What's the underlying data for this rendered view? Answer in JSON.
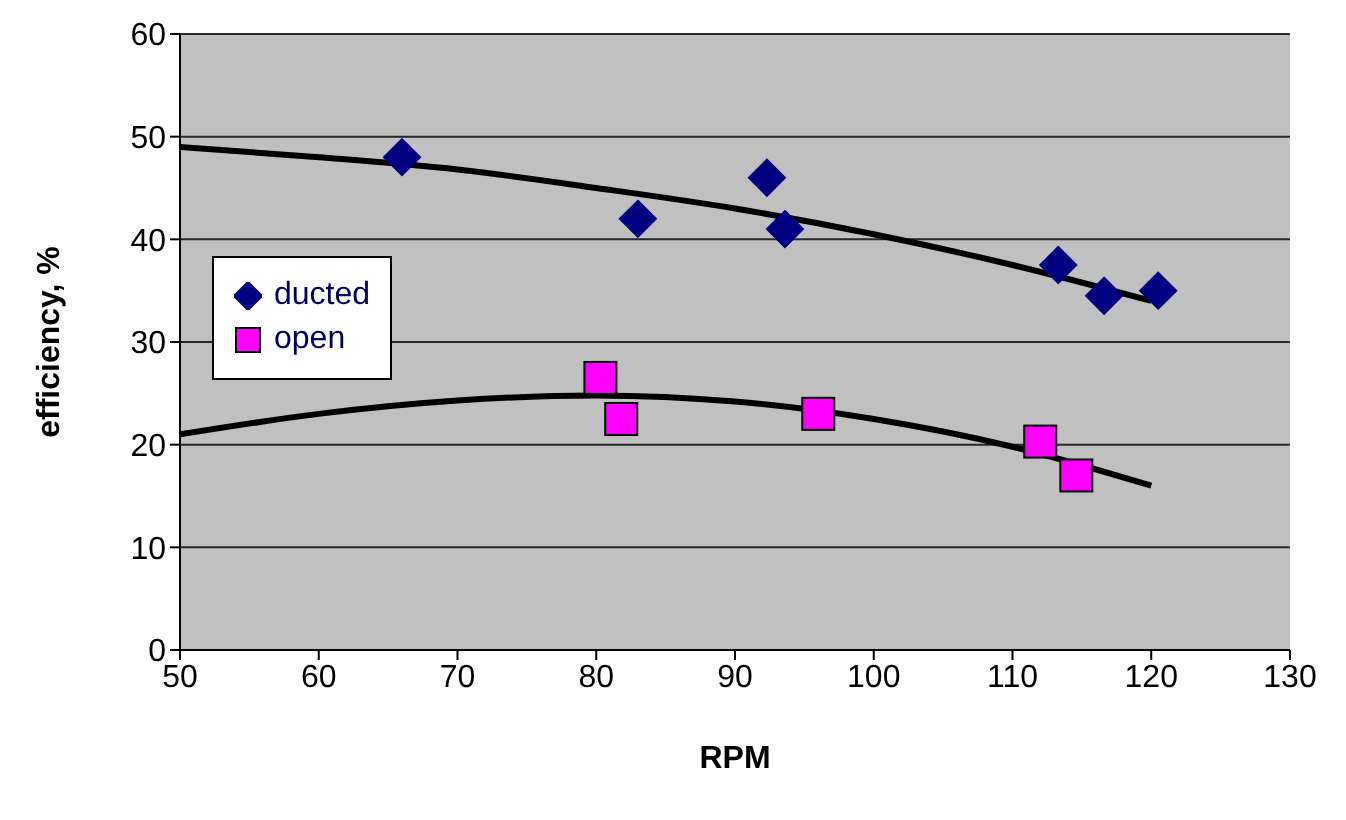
{
  "chart_data": {
    "type": "scatter",
    "xlabel": "RPM",
    "ylabel": "efficiency, %",
    "xlim": [
      50,
      130
    ],
    "xticks": [
      50,
      60,
      70,
      80,
      90,
      100,
      110,
      120,
      130
    ],
    "ylim": [
      0,
      60
    ],
    "yticks": [
      0,
      10,
      20,
      30,
      40,
      50,
      60
    ],
    "grid": "y",
    "legend": "left",
    "series": [
      {
        "name": "ducted",
        "marker": "diamond",
        "color": "#000080",
        "x": [
          66,
          83,
          92.3,
          93.6,
          113.3,
          116.6,
          120.5
        ],
        "values": [
          48,
          42,
          46,
          41,
          37.5,
          34.5,
          35
        ]
      },
      {
        "name": "open",
        "marker": "square",
        "color": "#ff00ff",
        "x": [
          80.3,
          81.8,
          96,
          112,
          114.6
        ],
        "values": [
          26.5,
          22.5,
          23,
          20.3,
          17
        ]
      },
      {
        "type": "line",
        "marker": "none",
        "color": "#000000",
        "x": [
          50,
          60,
          70,
          80,
          90,
          100,
          110,
          120
        ],
        "values": [
          49,
          48,
          46.8,
          45,
          43,
          40.5,
          37.5,
          34
        ]
      },
      {
        "type": "line",
        "marker": "none",
        "color": "#000000",
        "x": [
          50,
          60,
          70,
          80,
          90,
          100,
          110,
          120
        ],
        "values": [
          21,
          23,
          24.3,
          24.8,
          24.2,
          22.5,
          19.8,
          16
        ]
      }
    ]
  }
}
